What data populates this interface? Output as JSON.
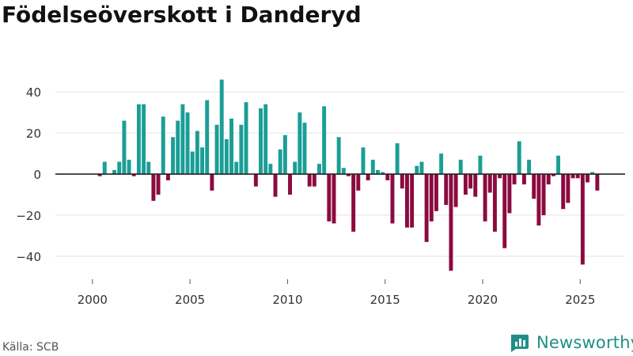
{
  "chart_data": {
    "type": "bar",
    "title": "Födelseöverskott i Danderyd",
    "xlabel": "",
    "ylabel": "",
    "xlim": [
      1998.1,
      2027.3
    ],
    "ylim": [
      -50,
      52
    ],
    "y_ticks": [
      -40,
      -20,
      0,
      20,
      40
    ],
    "y_tick_labels": [
      "−40",
      "−20",
      "0",
      "20",
      "40"
    ],
    "x_ticks": [
      2000,
      2005,
      2010,
      2015,
      2020,
      2025
    ],
    "x_tick_labels": [
      "2000",
      "2005",
      "2010",
      "2015",
      "2020",
      "2025"
    ],
    "grid": true,
    "legend": "none",
    "positive_color": "#1a9e96",
    "negative_color": "#8b0a3f",
    "start": "2000 Q1",
    "frequency": "quarterly",
    "values": [
      0,
      -1,
      6,
      0,
      2,
      6,
      26,
      7,
      -1,
      34,
      34,
      6,
      -13,
      -10,
      28,
      -3,
      18,
      26,
      34,
      30,
      11,
      21,
      13,
      36,
      -8,
      24,
      46,
      17,
      27,
      6,
      24,
      35,
      0,
      -6,
      32,
      34,
      5,
      -11,
      12,
      19,
      -10,
      6,
      30,
      25,
      -6,
      -6,
      5,
      33,
      -23,
      -24,
      18,
      3,
      -1,
      -28,
      -8,
      13,
      -3,
      7,
      2,
      1,
      -3,
      -24,
      15,
      -7,
      -26,
      -26,
      4,
      6,
      -33,
      -23,
      -18,
      10,
      -15,
      -47,
      -16,
      7,
      -10,
      -7,
      -11,
      9,
      -23,
      -9,
      -28,
      -2,
      -36,
      -19,
      -5,
      16,
      -5,
      7,
      -12,
      -25,
      -20,
      -5,
      -1,
      9,
      -17,
      -14,
      -2,
      -2,
      -44,
      -4,
      1,
      -8
    ]
  },
  "footer": {
    "source": "Källa: SCB",
    "brand": "Newsworthy",
    "brand_icon": "newsworthy-logo-icon"
  }
}
